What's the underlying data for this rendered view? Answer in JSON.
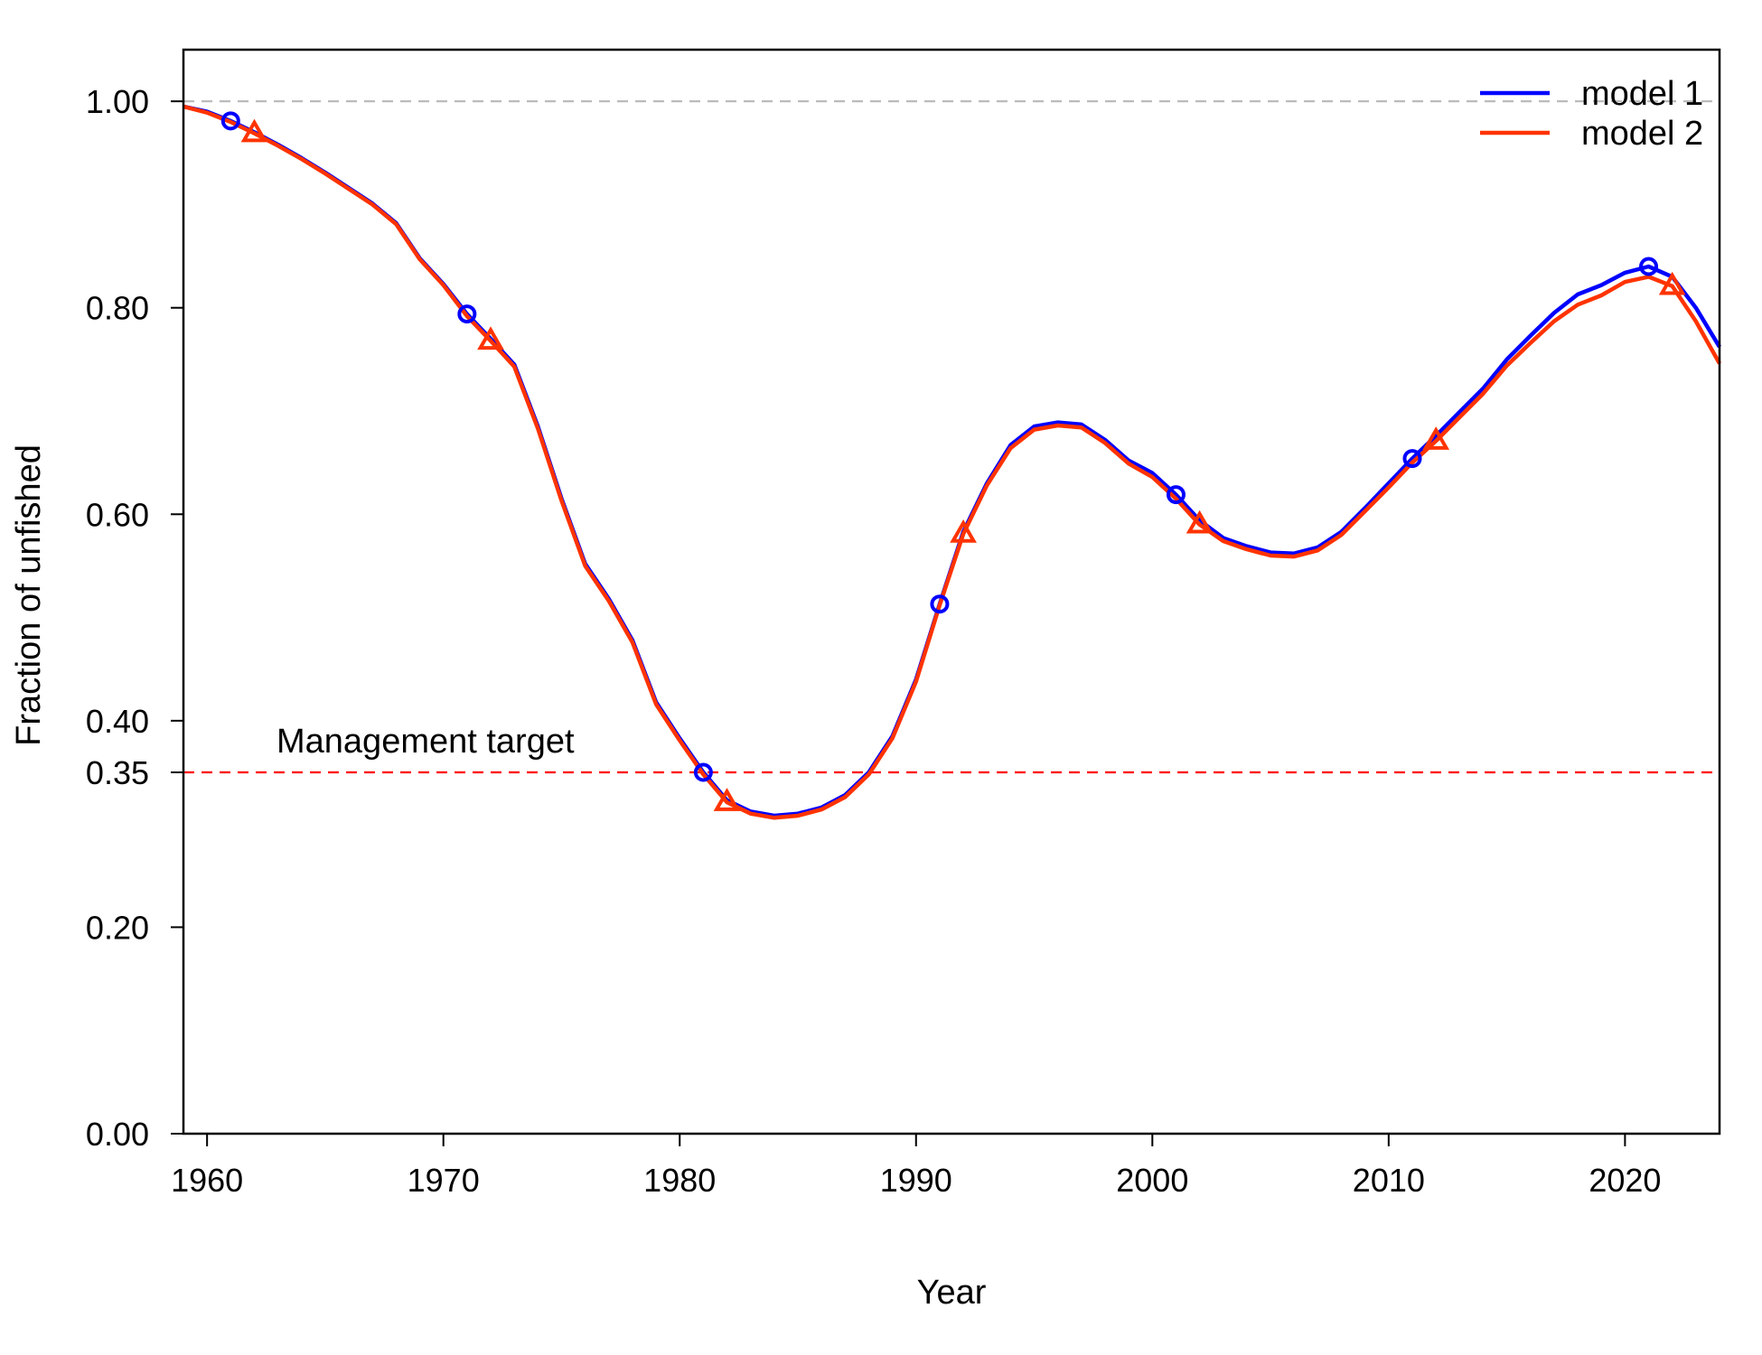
{
  "chart_data": {
    "type": "line",
    "title": "",
    "xlabel": "Year",
    "ylabel": "Fraction of unfished",
    "xlim": [
      1959,
      2024
    ],
    "ylim": [
      0,
      1.05
    ],
    "x_ticks": [
      1960,
      1970,
      1980,
      1990,
      2000,
      2010,
      2020
    ],
    "y_ticks": [
      0,
      0.2,
      0.35,
      0.4,
      0.6,
      0.8,
      1.0
    ],
    "y_tick_labels": [
      "0.00",
      "0.20",
      "0.35",
      "0.40",
      "0.60",
      "0.80",
      "1.00"
    ],
    "x_tick_labels": [
      "1960",
      "1970",
      "1980",
      "1990",
      "2000",
      "2010",
      "2020"
    ],
    "grid": false,
    "legend_position": "top-right",
    "reference_lines": [
      {
        "y": 1.0,
        "color": "#bbbbbb",
        "style": "dashed"
      },
      {
        "y": 0.35,
        "color": "#ff0000",
        "style": "dashed",
        "label": "Management target"
      }
    ],
    "series": [
      {
        "name": "model 1",
        "color": "#0000ff",
        "marker": "circle",
        "marker_years": [
          1961,
          1971,
          1981,
          1991,
          2001,
          2011,
          2021
        ],
        "x": [
          1959,
          1960,
          1961,
          1962,
          1963,
          1964,
          1965,
          1966,
          1967,
          1968,
          1969,
          1970,
          1971,
          1972,
          1973,
          1974,
          1975,
          1976,
          1977,
          1978,
          1979,
          1980,
          1981,
          1982,
          1983,
          1984,
          1985,
          1986,
          1987,
          1988,
          1989,
          1990,
          1991,
          1992,
          1993,
          1994,
          1995,
          1996,
          1997,
          1998,
          1999,
          2000,
          2001,
          2002,
          2003,
          2004,
          2005,
          2006,
          2007,
          2008,
          2009,
          2010,
          2011,
          2012,
          2013,
          2014,
          2015,
          2016,
          2017,
          2018,
          2019,
          2020,
          2021,
          2022,
          2023,
          2024
        ],
        "y": [
          0.995,
          0.99,
          0.981,
          0.97,
          0.958,
          0.945,
          0.931,
          0.916,
          0.901,
          0.882,
          0.848,
          0.823,
          0.794,
          0.77,
          0.745,
          0.685,
          0.615,
          0.552,
          0.518,
          0.478,
          0.418,
          0.383,
          0.35,
          0.323,
          0.312,
          0.308,
          0.31,
          0.316,
          0.328,
          0.35,
          0.385,
          0.44,
          0.513,
          0.583,
          0.63,
          0.667,
          0.685,
          0.689,
          0.687,
          0.672,
          0.652,
          0.64,
          0.619,
          0.594,
          0.577,
          0.569,
          0.563,
          0.562,
          0.568,
          0.583,
          0.606,
          0.63,
          0.654,
          0.676,
          0.699,
          0.722,
          0.75,
          0.773,
          0.795,
          0.813,
          0.822,
          0.834,
          0.84,
          0.83,
          0.8,
          0.762
        ]
      },
      {
        "name": "model 2",
        "color": "#ff3300",
        "marker": "triangle",
        "marker_years": [
          1962,
          1972,
          1982,
          1992,
          2002,
          2012,
          2022
        ],
        "x": [
          1959,
          1960,
          1961,
          1962,
          1963,
          1964,
          1965,
          1966,
          1967,
          1968,
          1969,
          1970,
          1971,
          1972,
          1973,
          1974,
          1975,
          1976,
          1977,
          1978,
          1979,
          1980,
          1981,
          1982,
          1983,
          1984,
          1985,
          1986,
          1987,
          1988,
          1989,
          1990,
          1991,
          1992,
          1993,
          1994,
          1995,
          1996,
          1997,
          1998,
          1999,
          2000,
          2001,
          2002,
          2003,
          2004,
          2005,
          2006,
          2007,
          2008,
          2009,
          2010,
          2011,
          2012,
          2013,
          2014,
          2015,
          2016,
          2017,
          2018,
          2019,
          2020,
          2021,
          2022,
          2023,
          2024
        ],
        "y": [
          0.995,
          0.989,
          0.98,
          0.969,
          0.957,
          0.944,
          0.93,
          0.915,
          0.9,
          0.881,
          0.847,
          0.822,
          0.792,
          0.768,
          0.743,
          0.683,
          0.613,
          0.55,
          0.516,
          0.476,
          0.416,
          0.381,
          0.348,
          0.321,
          0.31,
          0.306,
          0.308,
          0.314,
          0.326,
          0.348,
          0.383,
          0.438,
          0.512,
          0.581,
          0.628,
          0.664,
          0.682,
          0.686,
          0.684,
          0.669,
          0.649,
          0.636,
          0.615,
          0.59,
          0.574,
          0.566,
          0.56,
          0.559,
          0.565,
          0.58,
          0.603,
          0.626,
          0.65,
          0.671,
          0.694,
          0.717,
          0.744,
          0.766,
          0.787,
          0.803,
          0.812,
          0.825,
          0.83,
          0.821,
          0.787,
          0.746
        ]
      }
    ]
  }
}
